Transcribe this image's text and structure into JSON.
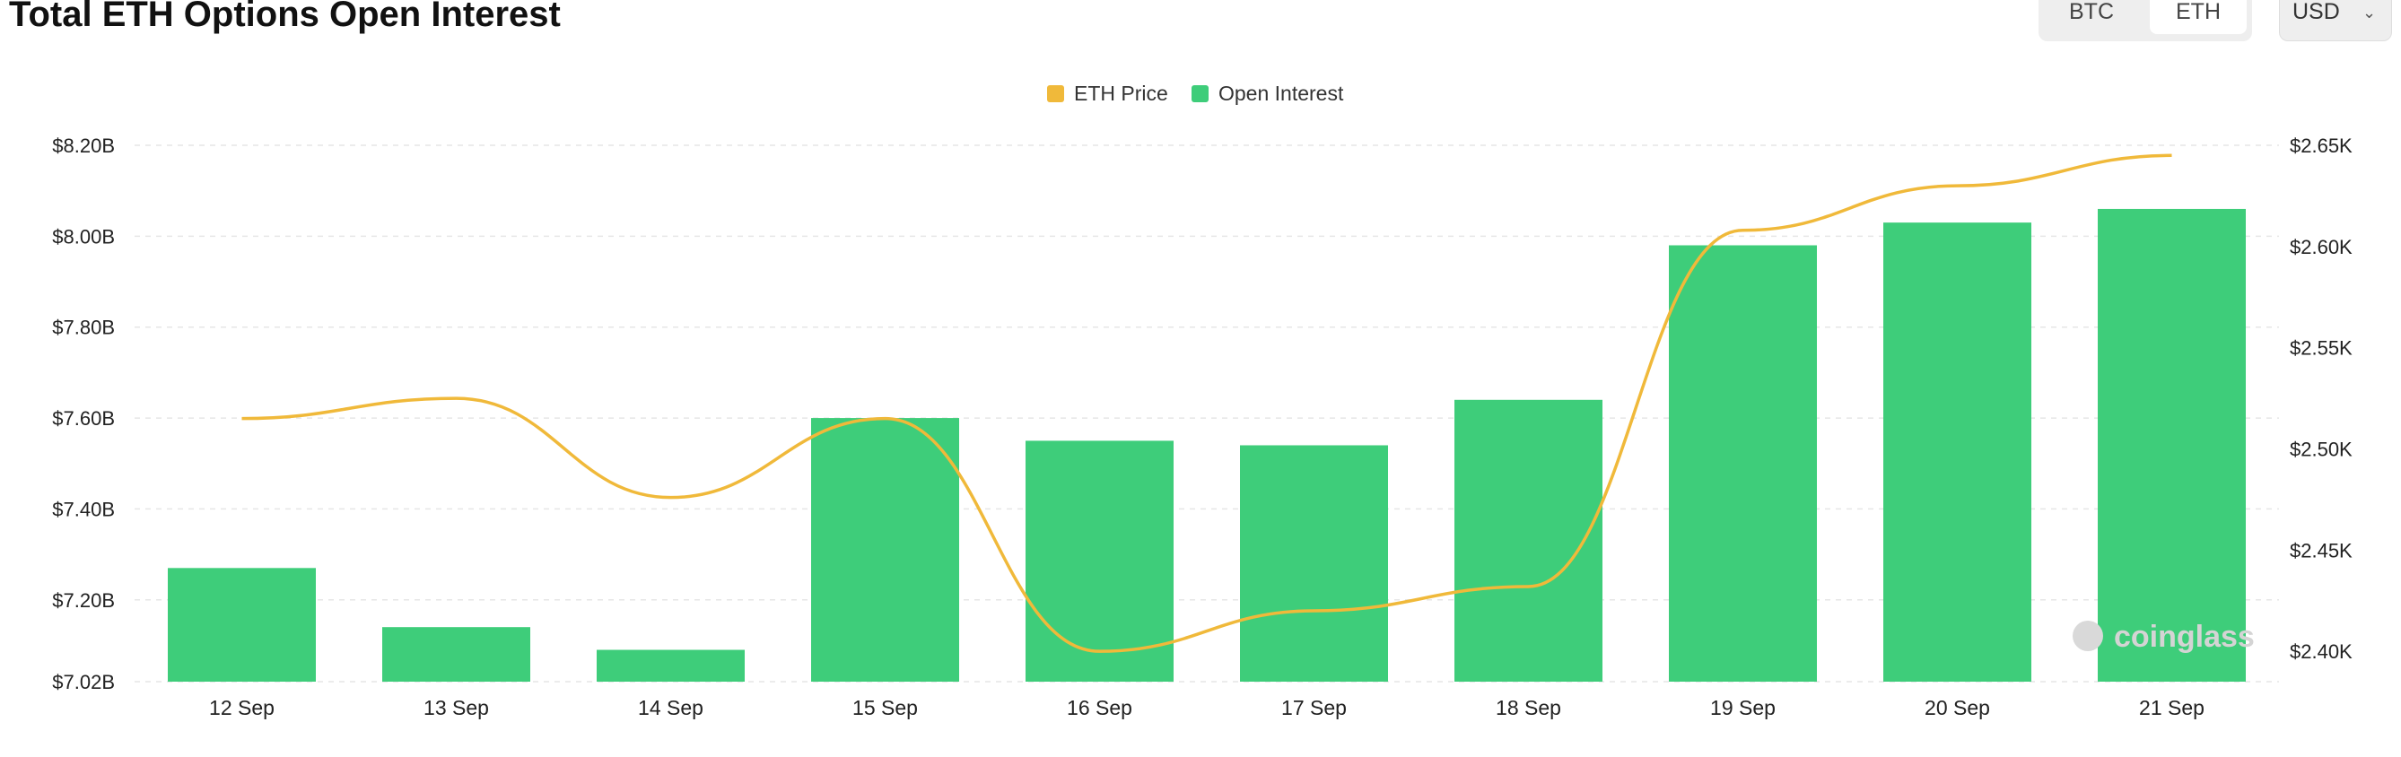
{
  "header": {
    "title": "Total ETH Options Open Interest",
    "asset_options": [
      "BTC",
      "ETH"
    ],
    "selected_asset": "ETH",
    "currency": "USD"
  },
  "colors": {
    "open_interest": "#3ecd7a",
    "eth_price": "#f0b93a",
    "grid": "#e6e6e6"
  },
  "watermark": "coinglass",
  "chart_data": {
    "type": "bar",
    "categories": [
      "12 Sep",
      "13 Sep",
      "14 Sep",
      "15 Sep",
      "16 Sep",
      "17 Sep",
      "18 Sep",
      "19 Sep",
      "20 Sep",
      "21 Sep"
    ],
    "series": [
      {
        "name": "Open Interest",
        "type": "bar",
        "axis": "left",
        "values": [
          7.27,
          7.14,
          7.09,
          7.6,
          7.55,
          7.54,
          7.64,
          7.98,
          8.03,
          8.06
        ]
      },
      {
        "name": "ETH Price",
        "type": "line",
        "axis": "right",
        "values": [
          2515,
          2525,
          2476,
          2515,
          2400,
          2420,
          2432,
          2608,
          2630,
          2645
        ]
      }
    ],
    "legend": [
      "ETH Price",
      "Open Interest"
    ],
    "legend_position": "top-center",
    "y_left": {
      "ticks": [
        7.02,
        7.2,
        7.4,
        7.6,
        7.8,
        8.0,
        8.2
      ],
      "tick_labels": [
        "$7.02B",
        "$7.20B",
        "$7.40B",
        "$7.60B",
        "$7.80B",
        "$8.00B",
        "$8.20B"
      ],
      "range": [
        7.02,
        8.2
      ]
    },
    "y_right": {
      "ticks": [
        2400,
        2450,
        2500,
        2550,
        2600,
        2650
      ],
      "tick_labels": [
        "$2.40K",
        "$2.45K",
        "$2.50K",
        "$2.55K",
        "$2.60K",
        "$2.65K"
      ],
      "range": [
        2385,
        2650
      ]
    },
    "grid": true
  }
}
